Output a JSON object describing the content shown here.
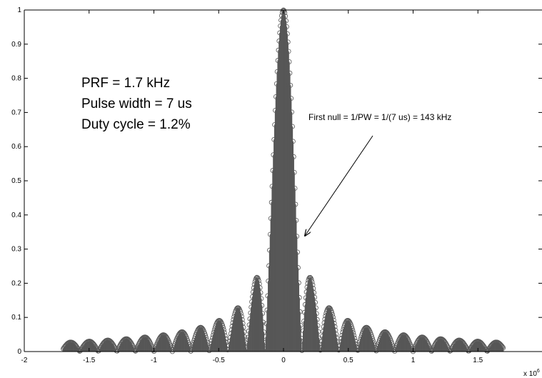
{
  "chart_data": {
    "type": "scatter",
    "title": "",
    "xlabel": "",
    "ylabel": "",
    "x_multiplier_label": "x 10",
    "x_multiplier_exponent": "6",
    "xlim": [
      -2,
      2
    ],
    "ylim": [
      0,
      1
    ],
    "x_ticks": [
      "-2",
      "-1.5",
      "-1",
      "-0.5",
      "0",
      "0.5",
      "1",
      "1.5"
    ],
    "x_tick_values": [
      -2,
      -1.5,
      -1,
      -0.5,
      0,
      0.5,
      1,
      1.5
    ],
    "y_ticks": [
      "0",
      "0.1",
      "0.2",
      "0.3",
      "0.4",
      "0.5",
      "0.6",
      "0.7",
      "0.8",
      "0.9",
      "1"
    ],
    "y_tick_values": [
      0,
      0.1,
      0.2,
      0.3,
      0.4,
      0.5,
      0.6,
      0.7,
      0.8,
      0.9,
      1
    ],
    "grid": false,
    "marker": "circle",
    "series": [
      {
        "color": "#575757",
        "envelope": "|sinc(f * PW)|, PW = 7 us",
        "spectral_line_spacing": 0.0017,
        "x_range": [
          -1.7,
          1.7
        ],
        "values_by_lobe": [
          {
            "x": 0.0,
            "y": 1.0
          },
          {
            "x": 0.2,
            "y": 0.22
          },
          {
            "x": 0.35,
            "y": 0.13
          },
          {
            "x": 0.5,
            "y": 0.09
          },
          {
            "x": 0.64,
            "y": 0.07
          },
          {
            "x": 0.79,
            "y": 0.057
          },
          {
            "x": 0.93,
            "y": 0.048
          },
          {
            "x": 1.07,
            "y": 0.042
          },
          {
            "x": 1.21,
            "y": 0.037
          },
          {
            "x": 1.36,
            "y": 0.033
          },
          {
            "x": 1.5,
            "y": 0.03
          },
          {
            "x": 1.64,
            "y": 0.027
          }
        ]
      }
    ],
    "text_box": [
      "PRF = 1.7 kHz",
      "Pulse width = 7 us",
      "Duty cycle = 1.2%"
    ],
    "annotation": {
      "text": "First null = 1/PW = 1/(7 us) = 143 kHz",
      "target": {
        "x": 0.143,
        "y": 0.33
      }
    }
  }
}
